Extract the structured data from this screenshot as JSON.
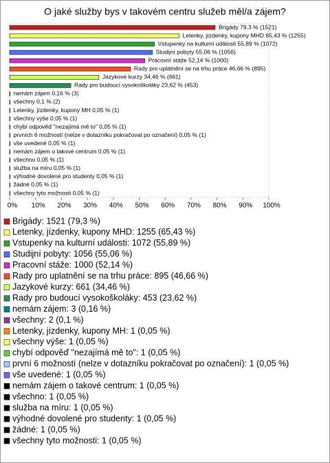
{
  "chart_data": {
    "type": "hbar",
    "title": "O jaké služby bys v takovém centru služeb měl/a zájem?",
    "values": [
      79.3,
      65.43,
      55.89,
      55.06,
      52.14,
      46.66,
      34.46,
      23.62,
      0.16,
      0.1,
      0.05,
      0.05,
      0.05,
      0.05,
      0.05,
      0.05,
      0.05,
      0.05,
      0.05,
      0.05,
      0.05
    ],
    "value_labels": [
      "Brigády 79,3 % (1521)",
      "Letenky, jízdenky, kupony MHD 65,43 % (1255)",
      "Vstupenky na kulturní události 55,89 % (1072)",
      "Studijní pobyty 55,06 % (1056)",
      "Pracovní stáže 52,14 % (1000)",
      "Rady pro uplatnění se na trhu práce 46,66 % (895)",
      "Jazykové kurzy 34,46 % (661)",
      "Rady pro budoucí vysokoškoláky 23,62 % (453)",
      "nemám zájem 0,16 % (3)",
      "všechny 0,1 % (2)",
      "Letenky, jízdenky, kupony MH 0,05 % (1)",
      "všechny výše 0,05 % (1)",
      "chybí odpověď \"nezajímá mě to\" 0,05 % (1)",
      "prvních 6 možností (nelze v dotazníku pokračovat po označení) 0,05 % (1)",
      "vše uvedené 0,05 % (1)",
      "nemám zájem o takové centrum 0,05 % (1)",
      "všechno 0,05 % (1)",
      "služba na míru 0,05 % (1)",
      "výhodné dovolené pro studenty 0,05 % (1)",
      "žádné 0,05 % (1)",
      "všechny tyto možnosti 0,05 % (1)"
    ],
    "legend": [
      "Brigády: 1521 (79,3 %)",
      "Letenky, jízdenky, kupony MHD: 1255 (65,43 %)",
      "Vstupenky na kulturní události: 1072 (55,89 %)",
      "Studijní pobyty: 1056 (55,06 %)",
      "Pracovní stáže: 1000 (52,14 %)",
      "Rady pro uplatnění se na trhu práce: 895 (46,66 %)",
      "Jazykové kurzy: 661 (34,46 %)",
      "Rady pro budoucí vysokoškoláky: 453 (23,62 %)",
      "nemám zájem: 3 (0,16 %)",
      "všechny: 2 (0,1 %)",
      "Letenky, jízdenky, kupony MH: 1 (0,05 %)",
      "všechny výše: 1 (0,05 %)",
      "chybí odpověď \"nezajímá mě to\": 1 (0,05 %)",
      "první 6 možností (nelze v dotazníku pokračovat po označení): 1 (0,05 %)",
      "vše uvedené: 1 (0,05 %)",
      "nemám zájem o takové centrum: 1 (0,05 %)",
      "všechno: 1 (0,05 %)",
      "služba na míru: 1 (0,05 %)",
      "výhodné dovolené pro studenty: 1 (0,05 %)",
      "žádné: 1 (0,05 %)",
      "všechny tyto možnosti: 1 (0,05 %)"
    ],
    "colors": [
      "#c0201a",
      "#ffff66",
      "#2fa52f",
      "#4f6fff",
      "#cc33cc",
      "#e8542a",
      "#ccff66",
      "#2e8b57",
      "#008080",
      "#993399",
      "#ff8c00",
      "#ffff66",
      "#66cc33",
      "#99ccff",
      "#6666ff",
      "#000000",
      "#000000",
      "#000000",
      "#000000",
      "#000000",
      "#000000"
    ],
    "xlim": [
      0,
      100
    ],
    "xticks": [
      {
        "value": 0,
        "label": "0%"
      },
      {
        "value": 10,
        "label": "10%"
      },
      {
        "value": 20,
        "label": "20%"
      },
      {
        "value": 30,
        "label": "30%"
      },
      {
        "value": 40,
        "label": "40%"
      },
      {
        "value": 50,
        "label": "50%"
      },
      {
        "value": 60,
        "label": "60%"
      },
      {
        "value": 70,
        "label": "70%"
      },
      {
        "value": 80,
        "label": "80%"
      },
      {
        "value": 90,
        "label": "90%"
      },
      {
        "value": 100,
        "label": "100%"
      }
    ]
  }
}
